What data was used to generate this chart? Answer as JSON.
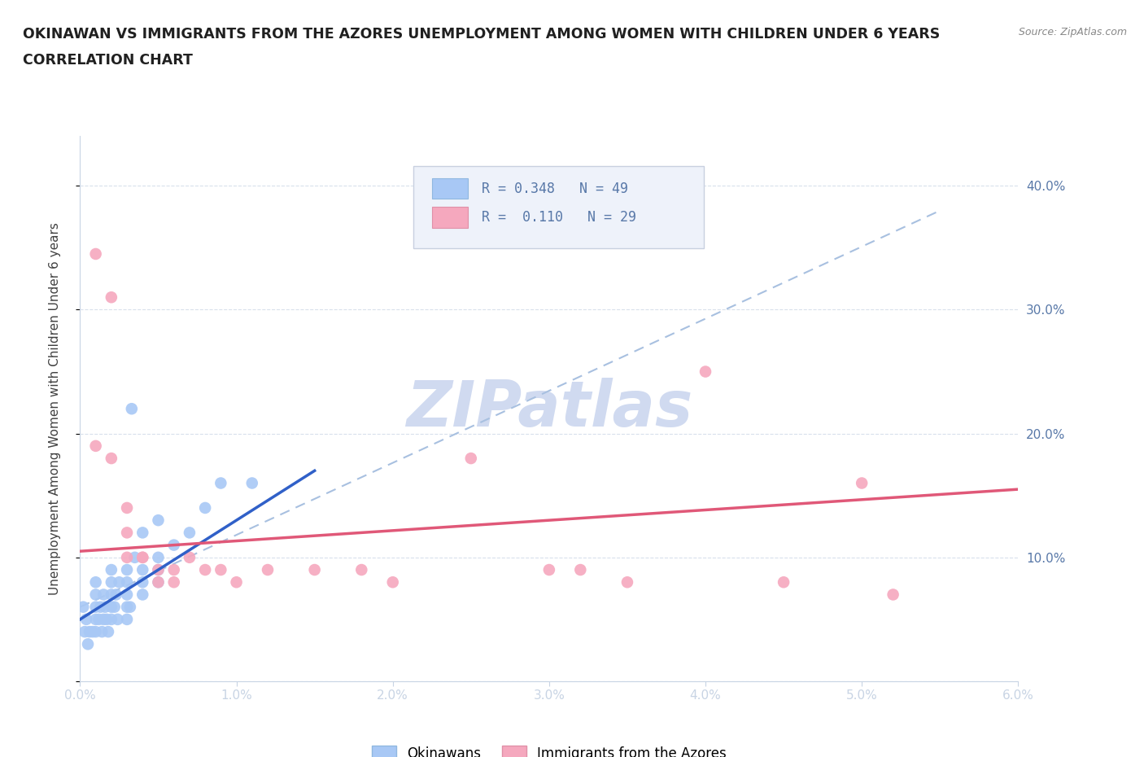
{
  "title_line1": "OKINAWAN VS IMMIGRANTS FROM THE AZORES UNEMPLOYMENT AMONG WOMEN WITH CHILDREN UNDER 6 YEARS",
  "title_line2": "CORRELATION CHART",
  "source_text": "Source: ZipAtlas.com",
  "ylabel": "Unemployment Among Women with Children Under 6 years",
  "xlim": [
    0.0,
    0.06
  ],
  "ylim": [
    0.0,
    0.44
  ],
  "xticks": [
    0.0,
    0.01,
    0.02,
    0.03,
    0.04,
    0.05,
    0.06
  ],
  "xticklabels": [
    "0.0%",
    "1.0%",
    "2.0%",
    "3.0%",
    "4.0%",
    "5.0%",
    "6.0%"
  ],
  "yticks": [
    0.0,
    0.1,
    0.2,
    0.3,
    0.4
  ],
  "yticklabels_right": [
    "",
    "10.0%",
    "20.0%",
    "30.0%",
    "40.0%"
  ],
  "R_blue": 0.348,
  "N_blue": 49,
  "R_pink": 0.11,
  "N_pink": 29,
  "blue_scatter_color": "#a8c8f5",
  "pink_scatter_color": "#f5a8be",
  "blue_line_color": "#3060c8",
  "pink_line_color": "#e05878",
  "dashed_line_color": "#a8c0e0",
  "watermark_color": "#d0daf0",
  "legend_label_blue": "Okinawans",
  "legend_label_pink": "Immigrants from the Azores",
  "title_color": "#202020",
  "axis_color": "#5878a8",
  "grid_color": "#d8e0ec",
  "blue_scatter_x": [
    0.0002,
    0.0003,
    0.0004,
    0.0005,
    0.0006,
    0.0008,
    0.001,
    0.001,
    0.001,
    0.001,
    0.001,
    0.0012,
    0.0013,
    0.0014,
    0.0015,
    0.0015,
    0.0016,
    0.0017,
    0.0018,
    0.002,
    0.002,
    0.002,
    0.002,
    0.002,
    0.0022,
    0.0023,
    0.0024,
    0.0025,
    0.003,
    0.003,
    0.003,
    0.003,
    0.003,
    0.0032,
    0.0033,
    0.0035,
    0.004,
    0.004,
    0.004,
    0.004,
    0.005,
    0.005,
    0.005,
    0.005,
    0.006,
    0.007,
    0.008,
    0.009,
    0.011
  ],
  "blue_scatter_y": [
    0.06,
    0.04,
    0.05,
    0.03,
    0.04,
    0.04,
    0.04,
    0.05,
    0.06,
    0.07,
    0.08,
    0.05,
    0.06,
    0.04,
    0.05,
    0.07,
    0.06,
    0.05,
    0.04,
    0.05,
    0.06,
    0.07,
    0.08,
    0.09,
    0.06,
    0.07,
    0.05,
    0.08,
    0.05,
    0.06,
    0.07,
    0.08,
    0.09,
    0.06,
    0.22,
    0.1,
    0.07,
    0.08,
    0.09,
    0.12,
    0.08,
    0.09,
    0.1,
    0.13,
    0.11,
    0.12,
    0.14,
    0.16,
    0.16
  ],
  "pink_scatter_x": [
    0.001,
    0.001,
    0.002,
    0.002,
    0.003,
    0.003,
    0.003,
    0.004,
    0.004,
    0.005,
    0.005,
    0.006,
    0.006,
    0.007,
    0.008,
    0.009,
    0.01,
    0.012,
    0.015,
    0.018,
    0.02,
    0.025,
    0.03,
    0.032,
    0.035,
    0.04,
    0.045,
    0.05,
    0.052
  ],
  "pink_scatter_y": [
    0.19,
    0.345,
    0.31,
    0.18,
    0.12,
    0.14,
    0.1,
    0.1,
    0.1,
    0.09,
    0.08,
    0.09,
    0.08,
    0.1,
    0.09,
    0.09,
    0.08,
    0.09,
    0.09,
    0.09,
    0.08,
    0.18,
    0.09,
    0.09,
    0.08,
    0.25,
    0.08,
    0.16,
    0.07
  ],
  "blue_line_x": [
    0.0,
    0.015
  ],
  "blue_line_y": [
    0.05,
    0.17
  ],
  "pink_line_x": [
    0.0,
    0.06
  ],
  "pink_line_y": [
    0.105,
    0.155
  ],
  "dash_line_x": [
    0.0,
    0.055
  ],
  "dash_line_y": [
    0.06,
    0.38
  ]
}
